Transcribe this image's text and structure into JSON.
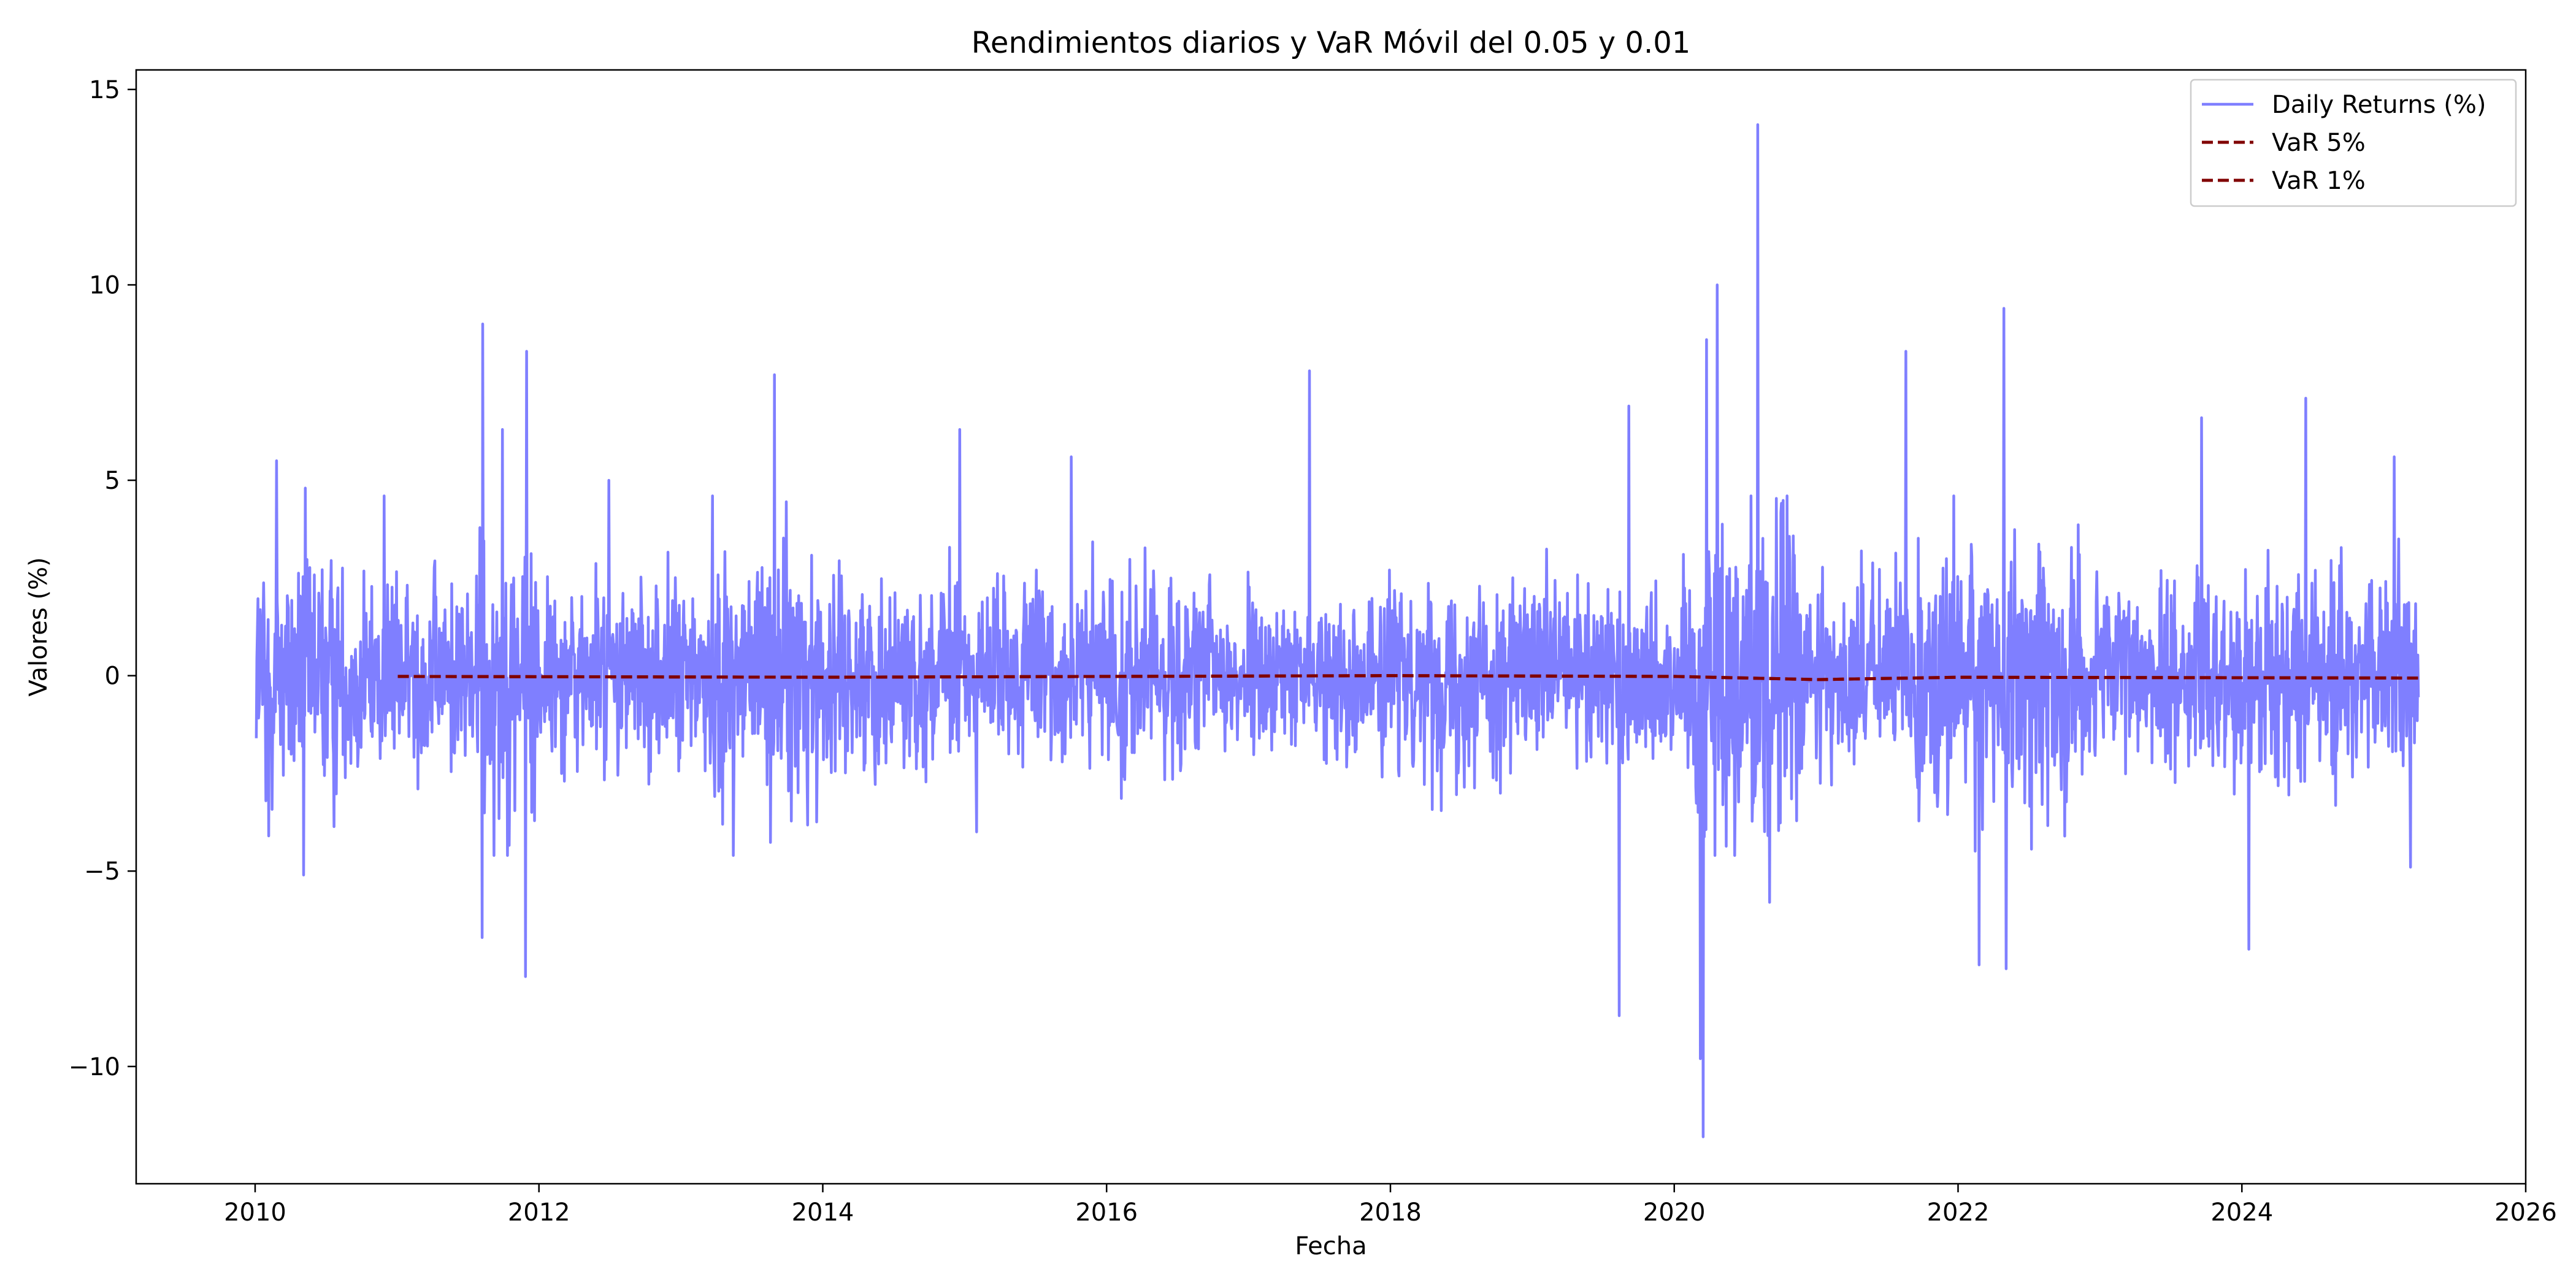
{
  "chart_data": {
    "type": "line",
    "title": "Rendimientos diarios y VaR Móvil del 0.05 y 0.01",
    "xlabel": "Fecha",
    "ylabel": "Valores (%)",
    "x_axis": {
      "kind": "date",
      "range": [
        "2009-03-01",
        "2026-01-01"
      ],
      "ticks": [
        "2010",
        "2012",
        "2014",
        "2016",
        "2018",
        "2020",
        "2022",
        "2024",
        "2026"
      ]
    },
    "y_axis": {
      "range": [
        -13,
        15.5
      ],
      "ticks": [
        -10,
        -5,
        0,
        5,
        10,
        15
      ]
    },
    "grid": false,
    "legend_position": "top-right",
    "series": [
      {
        "name": "Daily Returns (%)",
        "style": "solid",
        "color": "#7f7fff",
        "date_range": [
          "2010-01-04",
          "2025-03-31"
        ],
        "approx_daily_std": 1.4,
        "marked_extremes": [
          {
            "x": "2010-01-29",
            "y": -3.2
          },
          {
            "x": "2010-02-05",
            "y": -4.1
          },
          {
            "x": "2010-02-25",
            "y": 5.5
          },
          {
            "x": "2010-05-06",
            "y": -5.1
          },
          {
            "x": "2010-05-10",
            "y": 4.8
          },
          {
            "x": "2010-11-29",
            "y": 4.6
          },
          {
            "x": "2011-08-08",
            "y": -6.7
          },
          {
            "x": "2011-08-10",
            "y": 9.0
          },
          {
            "x": "2011-09-29",
            "y": 6.3
          },
          {
            "x": "2011-11-28",
            "y": -7.7
          },
          {
            "x": "2011-11-30",
            "y": 8.3
          },
          {
            "x": "2012-06-29",
            "y": 5.0
          },
          {
            "x": "2013-08-29",
            "y": 7.7
          },
          {
            "x": "2014-12-19",
            "y": 6.3
          },
          {
            "x": "2015-10-02",
            "y": 5.6
          },
          {
            "x": "2017-06-07",
            "y": 7.8
          },
          {
            "x": "2019-08-12",
            "y": -8.7
          },
          {
            "x": "2019-09-06",
            "y": 6.9
          },
          {
            "x": "2020-03-09",
            "y": -9.8
          },
          {
            "x": "2020-03-16",
            "y": -11.8
          },
          {
            "x": "2020-03-24",
            "y": 8.6
          },
          {
            "x": "2020-04-21",
            "y": 10.0
          },
          {
            "x": "2020-08-03",
            "y": 14.1
          },
          {
            "x": "2020-09-03",
            "y": -5.8
          },
          {
            "x": "2021-08-20",
            "y": 8.3
          },
          {
            "x": "2022-02-24",
            "y": -7.4
          },
          {
            "x": "2022-04-29",
            "y": 9.4
          },
          {
            "x": "2022-05-04",
            "y": -7.5
          },
          {
            "x": "2023-09-20",
            "y": 6.6
          },
          {
            "x": "2024-01-19",
            "y": -7.0
          },
          {
            "x": "2024-06-14",
            "y": 7.1
          },
          {
            "x": "2025-01-27",
            "y": 5.6
          },
          {
            "x": "2025-03-10",
            "y": -4.9
          }
        ]
      },
      {
        "name": "VaR 5%",
        "style": "dashed",
        "color": "#800000",
        "points": [
          {
            "x": "2011-01-03",
            "y": -0.02
          },
          {
            "x": "2014-01-02",
            "y": -0.04
          },
          {
            "x": "2018-01-02",
            "y": 0.0
          },
          {
            "x": "2020-01-02",
            "y": -0.02
          },
          {
            "x": "2021-01-04",
            "y": -0.1
          },
          {
            "x": "2022-01-03",
            "y": -0.04
          },
          {
            "x": "2025-03-31",
            "y": -0.06
          }
        ]
      },
      {
        "name": "VaR 1%",
        "style": "dashed",
        "color": "#800000",
        "points": [
          {
            "x": "2011-01-03",
            "y": -0.02
          },
          {
            "x": "2014-01-02",
            "y": -0.04
          },
          {
            "x": "2018-01-02",
            "y": 0.0
          },
          {
            "x": "2020-01-02",
            "y": -0.02
          },
          {
            "x": "2021-01-04",
            "y": -0.1
          },
          {
            "x": "2022-01-03",
            "y": -0.04
          },
          {
            "x": "2025-03-31",
            "y": -0.06
          }
        ]
      }
    ]
  }
}
